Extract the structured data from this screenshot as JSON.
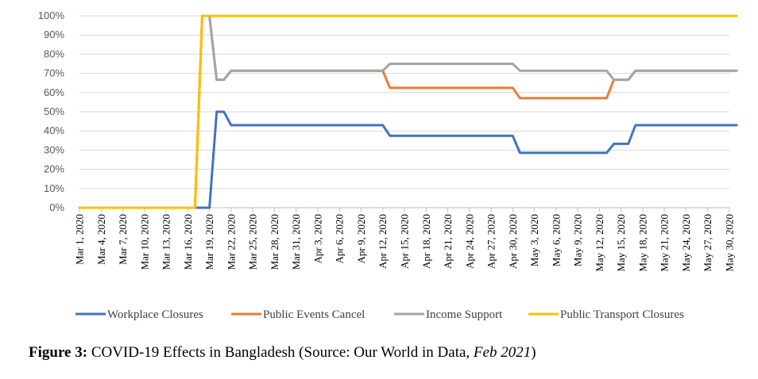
{
  "chart_data": {
    "type": "line",
    "categories": [
      "Mar 1, 2020",
      "Mar 4, 2020",
      "Mar 7, 2020",
      "Mar 10, 2020",
      "Mar 13, 2020",
      "Mar 16, 2020",
      "Mar 19, 2020",
      "Mar 22, 2020",
      "Mar 25, 2020",
      "Mar 28, 2020",
      "Mar 31, 2020",
      "Apr 3, 2020",
      "Apr 6, 2020",
      "Apr 9, 2020",
      "Apr 12, 2020",
      "Apr 15, 2020",
      "Apr 18, 2020",
      "Apr 21, 2020",
      "Apr 24, 2020",
      "Apr 27, 2020",
      "Apr 30, 2020",
      "May 3, 2020",
      "May 6, 2020",
      "May 9, 2020",
      "May 12, 2020",
      "May 15, 2020",
      "May 18, 2020",
      "May 21, 2020",
      "May 24, 2020",
      "May 27, 2020",
      "May 30, 2020"
    ],
    "y_ticks": [
      "0%",
      "10%",
      "20%",
      "30%",
      "40%",
      "50%",
      "60%",
      "70%",
      "80%",
      "90%",
      "100%"
    ],
    "ylim": [
      0,
      100
    ],
    "grid": true,
    "legend_position": "bottom",
    "series": [
      {
        "name": "Workplace Closures",
        "color": "#4472C4",
        "points": [
          [
            "Mar 1, 2020",
            0
          ],
          [
            "Mar 19, 2020",
            0
          ],
          [
            "Mar 20, 2020",
            50
          ],
          [
            "Mar 21, 2020",
            50
          ],
          [
            "Mar 22, 2020",
            43
          ],
          [
            "Apr 12, 2020",
            43
          ],
          [
            "Apr 13, 2020",
            37.5
          ],
          [
            "Apr 30, 2020",
            37.5
          ],
          [
            "May 1, 2020",
            28.6
          ],
          [
            "May 13, 2020",
            28.6
          ],
          [
            "May 14, 2020",
            33.3
          ],
          [
            "May 16, 2020",
            33.3
          ],
          [
            "May 17, 2020",
            43
          ],
          [
            "May 31, 2020",
            43
          ]
        ]
      },
      {
        "name": "Public Events Cancel",
        "color": "#ED7D31",
        "points": [
          [
            "Mar 1, 2020",
            0
          ],
          [
            "Mar 17, 2020",
            0
          ],
          [
            "Mar 18, 2020",
            100
          ],
          [
            "Mar 19, 2020",
            100
          ],
          [
            "Mar 20, 2020",
            66.7
          ],
          [
            "Mar 21, 2020",
            66.7
          ],
          [
            "Mar 22, 2020",
            71.4
          ],
          [
            "Apr 12, 2020",
            71.4
          ],
          [
            "Apr 13, 2020",
            62.5
          ],
          [
            "Apr 30, 2020",
            62.5
          ],
          [
            "May 1, 2020",
            57.1
          ],
          [
            "May 13, 2020",
            57.1
          ],
          [
            "May 14, 2020",
            66.7
          ],
          [
            "May 16, 2020",
            66.7
          ],
          [
            "May 17, 2020",
            71.4
          ],
          [
            "May 31, 2020",
            71.4
          ]
        ]
      },
      {
        "name": "Income Support",
        "color": "#A5A5A5",
        "points": [
          [
            "Mar 1, 2020",
            0
          ],
          [
            "Mar 17, 2020",
            0
          ],
          [
            "Mar 18, 2020",
            100
          ],
          [
            "Mar 19, 2020",
            100
          ],
          [
            "Mar 20, 2020",
            66.7
          ],
          [
            "Mar 21, 2020",
            66.7
          ],
          [
            "Mar 22, 2020",
            71.4
          ],
          [
            "Apr 12, 2020",
            71.4
          ],
          [
            "Apr 13, 2020",
            75
          ],
          [
            "Apr 30, 2020",
            75
          ],
          [
            "May 1, 2020",
            71.4
          ],
          [
            "May 13, 2020",
            71.4
          ],
          [
            "May 14, 2020",
            66.7
          ],
          [
            "May 16, 2020",
            66.7
          ],
          [
            "May 17, 2020",
            71.4
          ],
          [
            "May 31, 2020",
            71.4
          ]
        ]
      },
      {
        "name": "Public Transport Closures",
        "color": "#FFC000",
        "points": [
          [
            "Mar 1, 2020",
            0
          ],
          [
            "Mar 17, 2020",
            0
          ],
          [
            "Mar 18, 2020",
            100
          ],
          [
            "May 31, 2020",
            100
          ]
        ]
      }
    ]
  },
  "caption": {
    "label": "Figure 3:",
    "text": " COVID-19 Effects in Bangladesh (Source: Our World in Data, ",
    "date": "Feb 2021",
    "close": ")"
  }
}
